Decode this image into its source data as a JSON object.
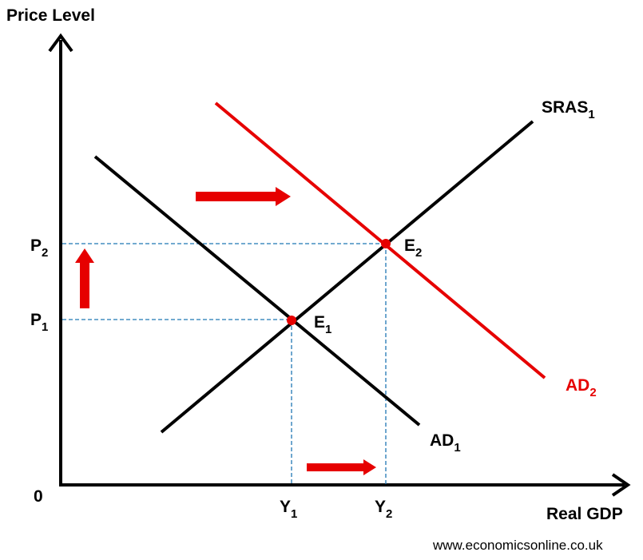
{
  "axes": {
    "y_label": "Price Level",
    "x_label": "Real GDP",
    "origin_label": "0"
  },
  "curves": {
    "sras": {
      "label": "SRAS",
      "sub": "1",
      "color": "#000000"
    },
    "ad1": {
      "label": "AD",
      "sub": "1",
      "color": "#000000"
    },
    "ad2": {
      "label": "AD",
      "sub": "2",
      "color": "#e60000"
    }
  },
  "equilibria": {
    "e1": {
      "label": "E",
      "sub": "1",
      "color": "#e60000"
    },
    "e2": {
      "label": "E",
      "sub": "2",
      "color": "#e60000"
    }
  },
  "price_levels": {
    "p1": {
      "label": "P",
      "sub": "1"
    },
    "p2": {
      "label": "P",
      "sub": "2"
    }
  },
  "output_levels": {
    "y1": {
      "label": "Y",
      "sub": "1"
    },
    "y2": {
      "label": "Y",
      "sub": "2"
    }
  },
  "guide_color": "#1f77b4",
  "arrow_color": "#e60000",
  "source": "www.economicsonline.co.uk"
}
